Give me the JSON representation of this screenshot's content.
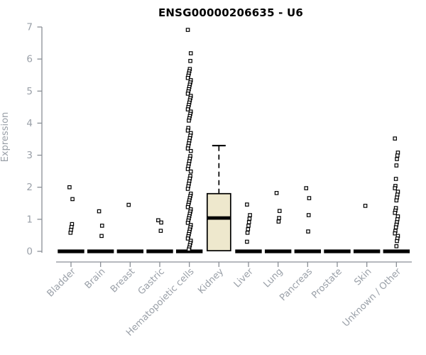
{
  "page": {
    "background": "#ffffff"
  },
  "chart_data": {
    "type": "boxplot",
    "title": "ENSG00000206635 - U6",
    "ylabel": "Expression",
    "xlabel": "",
    "ylim": [
      0,
      7
    ],
    "y_ticks": [
      0,
      1,
      2,
      3,
      4,
      5,
      6,
      7
    ],
    "grid": false,
    "legend": "none",
    "categories": [
      "Bladder",
      "Brain",
      "Breast",
      "Gastric",
      "Hematopoietic cells",
      "Kidney",
      "Liver",
      "Lung",
      "Pancreas",
      "Prostate",
      "Skin",
      "Unknown / Other"
    ],
    "series": [
      {
        "category": "Bladder",
        "box": {
          "q1": 0,
          "median": 0,
          "q3": 0,
          "whisker_low": 0,
          "whisker_high": 0
        },
        "outliers": [
          2.0,
          1.63,
          0.85,
          0.76,
          0.67,
          0.58
        ]
      },
      {
        "category": "Brain",
        "box": {
          "q1": 0,
          "median": 0,
          "q3": 0,
          "whisker_low": 0,
          "whisker_high": 0
        },
        "outliers": [
          1.25,
          0.8,
          0.48
        ]
      },
      {
        "category": "Breast",
        "box": {
          "q1": 0,
          "median": 0,
          "q3": 0,
          "whisker_low": 0,
          "whisker_high": 0
        },
        "outliers": [
          1.45
        ]
      },
      {
        "category": "Gastric",
        "box": {
          "q1": 0,
          "median": 0,
          "q3": 0,
          "whisker_low": 0,
          "whisker_high": 0
        },
        "outliers": [
          0.97,
          0.9,
          0.64
        ]
      },
      {
        "category": "Hematopoietic cells",
        "box": {
          "q1": 0,
          "median": 0,
          "q3": 0,
          "whisker_low": 0,
          "whisker_high": 0
        },
        "outliers": [
          6.91,
          6.18,
          5.94,
          5.69,
          5.62,
          5.55,
          5.48,
          5.41,
          5.34,
          5.27,
          5.2,
          5.13,
          5.06,
          4.99,
          4.92,
          4.85,
          4.78,
          4.71,
          4.64,
          4.57,
          4.5,
          4.43,
          4.36,
          4.29,
          4.22,
          4.15,
          4.08,
          3.85,
          3.77,
          3.69,
          3.61,
          3.53,
          3.45,
          3.37,
          3.29,
          3.21,
          3.13,
          2.97,
          2.89,
          2.81,
          2.73,
          2.65,
          2.57,
          2.49,
          2.35,
          2.27,
          2.19,
          2.11,
          2.03,
          1.95,
          1.8,
          1.73,
          1.66,
          1.59,
          1.52,
          1.45,
          1.38,
          1.31,
          1.24,
          1.17,
          1.1,
          1.03,
          0.96,
          0.89,
          0.82,
          0.75,
          0.68,
          0.61,
          0.54,
          0.47,
          0.4,
          0.33,
          0.26,
          0.19,
          0.12,
          0.06
        ]
      },
      {
        "category": "Kidney",
        "box": {
          "q1": 0.02,
          "median": 1.04,
          "q3": 1.8,
          "whisker_low": 0.02,
          "whisker_high": 3.3
        },
        "outliers": []
      },
      {
        "category": "Liver",
        "box": {
          "q1": 0,
          "median": 0,
          "q3": 0,
          "whisker_low": 0,
          "whisker_high": 0
        },
        "outliers": [
          1.46,
          1.13,
          1.02,
          0.91,
          0.8,
          0.69,
          0.58,
          0.3
        ]
      },
      {
        "category": "Lung",
        "box": {
          "q1": 0,
          "median": 0,
          "q3": 0,
          "whisker_low": 0,
          "whisker_high": 0
        },
        "outliers": [
          1.82,
          1.26,
          1.04,
          0.93
        ]
      },
      {
        "category": "Pancreas",
        "box": {
          "q1": 0,
          "median": 0,
          "q3": 0,
          "whisker_low": 0,
          "whisker_high": 0
        },
        "outliers": [
          1.97,
          1.66,
          1.13,
          0.62
        ]
      },
      {
        "category": "Prostate",
        "box": {
          "q1": 0,
          "median": 0,
          "q3": 0,
          "whisker_low": 0,
          "whisker_high": 0
        },
        "outliers": []
      },
      {
        "category": "Skin",
        "box": {
          "q1": 0,
          "median": 0,
          "q3": 0,
          "whisker_low": 0,
          "whisker_high": 0
        },
        "outliers": [
          1.42
        ]
      },
      {
        "category": "Unknown / Other",
        "box": {
          "q1": 0,
          "median": 0,
          "q3": 0,
          "whisker_low": 0,
          "whisker_high": 0
        },
        "outliers": [
          3.52,
          3.08,
          2.99,
          2.88,
          2.68,
          2.26,
          2.04,
          1.97,
          1.86,
          1.77,
          1.68,
          1.59,
          1.35,
          1.27,
          1.2,
          1.09,
          1.0,
          0.91,
          0.83,
          0.75,
          0.64,
          0.56,
          0.48,
          0.4,
          0.32,
          0.16
        ]
      }
    ],
    "style": {
      "box_fill": "#EEE8CD",
      "box_stroke": "#000000",
      "median_color": "#000000",
      "collapsed_bar_color": "#000000",
      "point_fill": "#ffffff",
      "point_stroke": "#000000",
      "axis_color": "#8a8f96",
      "tick_label_color": "#9aa0a8",
      "title_color": "#000000",
      "ylabel_color": "#9aa0a8"
    }
  }
}
